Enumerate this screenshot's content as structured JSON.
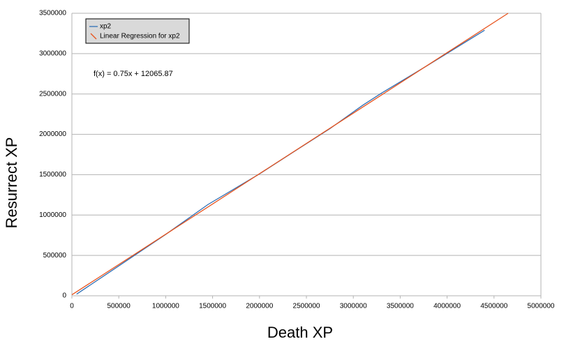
{
  "chart_data": {
    "type": "line",
    "xlabel": "Death XP",
    "ylabel": "Resurrect XP",
    "annotation": "f(x) = 0.75x + 12065.87",
    "series": [
      {
        "name": "xp2",
        "color": "#2e6fb5",
        "x": [
          50000,
          500000,
          1000000,
          1450000,
          2000000,
          2400000,
          2750000,
          3100000,
          3300000,
          3800000,
          4400000
        ],
        "values": [
          20000,
          370000,
          760000,
          1130000,
          1510000,
          1810000,
          2070000,
          2360000,
          2510000,
          2860000,
          3290000
        ]
      },
      {
        "name": "Linear Regression for xp2",
        "color": "#e8541e",
        "x": [
          0,
          4650579
        ],
        "values": [
          12065.87,
          3500000
        ]
      }
    ],
    "xlim": [
      0,
      5000000
    ],
    "xticks": [
      0,
      500000,
      1000000,
      1500000,
      2000000,
      2500000,
      3000000,
      3500000,
      4000000,
      4500000,
      5000000
    ],
    "ylim": [
      0,
      3500000
    ],
    "yticks": [
      0,
      500000,
      1000000,
      1500000,
      2000000,
      2500000,
      3000000,
      3500000
    ],
    "grid": true,
    "legend": "top-left"
  }
}
